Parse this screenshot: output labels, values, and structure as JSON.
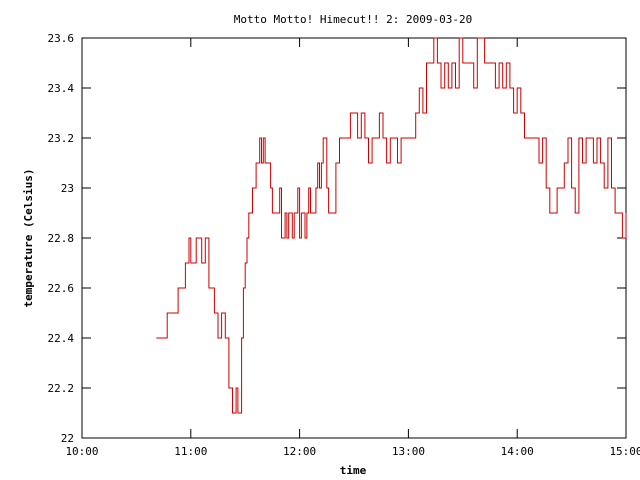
{
  "chart_data": {
    "type": "line",
    "title": "Motto Motto! Himecut!! 2: 2009-03-20",
    "xlabel": "time",
    "ylabel": "temperature (Celsius)",
    "xlim": [
      "10:00",
      "15:00"
    ],
    "ylim": [
      22,
      23.6
    ],
    "x_ticks": [
      "10:00",
      "11:00",
      "12:00",
      "13:00",
      "14:00",
      "15:00"
    ],
    "y_ticks": [
      "22",
      "22.2",
      "22.4",
      "22.6",
      "22.8",
      "23",
      "23.2",
      "23.4",
      "23.6"
    ],
    "grid": false,
    "legend": "none",
    "series_color": "#cc0000",
    "series": [
      {
        "x": [
          "10:41",
          "10:46",
          "10:47",
          "10:52",
          "10:53",
          "10:56",
          "10:57",
          "10:59",
          "11:00",
          "11:02",
          "11:03",
          "11:05",
          "11:06",
          "11:08",
          "11:09",
          "11:10",
          "11:12",
          "11:13",
          "11:15",
          "11:16",
          "11:17",
          "11:19",
          "11:20",
          "11:21",
          "11:22",
          "11:23",
          "11:24",
          "11:25",
          "11:26",
          "11:27",
          "11:28",
          "11:29",
          "11:30",
          "11:31",
          "11:32",
          "11:33",
          "11:34",
          "11:35",
          "11:36",
          "11:37",
          "11:38",
          "11:39",
          "11:40",
          "11:41",
          "11:42",
          "11:43",
          "11:44",
          "11:45",
          "11:46",
          "11:48",
          "11:49",
          "11:50",
          "11:52",
          "11:53",
          "11:54",
          "11:56",
          "11:57",
          "11:59",
          "12:00",
          "12:01",
          "12:02",
          "12:03",
          "12:04",
          "12:05",
          "12:06",
          "12:07",
          "12:08",
          "12:09",
          "12:10",
          "12:11",
          "12:12",
          "12:13",
          "12:15",
          "12:16",
          "12:18",
          "12:20",
          "12:22",
          "12:24",
          "12:26",
          "12:28",
          "12:30",
          "12:32",
          "12:34",
          "12:36",
          "12:38",
          "12:40",
          "12:42",
          "12:44",
          "12:46",
          "12:48",
          "12:50",
          "12:52",
          "12:54",
          "12:56",
          "12:58",
          "13:00",
          "13:02",
          "13:04",
          "13:06",
          "13:08",
          "13:10",
          "13:12",
          "13:14",
          "13:16",
          "13:18",
          "13:20",
          "13:22",
          "13:24",
          "13:26",
          "13:28",
          "13:30",
          "13:32",
          "13:34",
          "13:36",
          "13:38",
          "13:40",
          "13:42",
          "13:44",
          "13:46",
          "13:48",
          "13:50",
          "13:52",
          "13:54",
          "13:56",
          "13:58",
          "14:00",
          "14:02",
          "14:04",
          "14:06",
          "14:08",
          "14:10",
          "14:12",
          "14:14",
          "14:16",
          "14:18",
          "14:20",
          "14:22",
          "14:24",
          "14:26",
          "14:28",
          "14:30",
          "14:32",
          "14:34",
          "14:36",
          "14:38",
          "14:40",
          "14:42",
          "14:44",
          "14:46",
          "14:48",
          "14:50",
          "14:52",
          "14:54",
          "14:56",
          "14:58",
          "15:00"
        ],
        "values": [
          22.4,
          22.4,
          22.5,
          22.5,
          22.6,
          22.6,
          22.7,
          22.8,
          22.7,
          22.7,
          22.8,
          22.8,
          22.7,
          22.8,
          22.8,
          22.6,
          22.6,
          22.5,
          22.4,
          22.4,
          22.5,
          22.4,
          22.4,
          22.2,
          22.2,
          22.1,
          22.1,
          22.2,
          22.1,
          22.1,
          22.4,
          22.6,
          22.7,
          22.8,
          22.9,
          22.9,
          23.0,
          23.0,
          23.1,
          23.1,
          23.2,
          23.1,
          23.2,
          23.1,
          23.1,
          23.1,
          23.0,
          22.9,
          22.9,
          22.9,
          23.0,
          22.8,
          22.9,
          22.8,
          22.9,
          22.8,
          22.9,
          23.0,
          22.8,
          22.9,
          22.9,
          22.8,
          22.9,
          23.0,
          22.9,
          22.9,
          22.9,
          23.0,
          23.1,
          23.0,
          23.1,
          23.2,
          23.0,
          22.9,
          22.9,
          23.1,
          23.2,
          23.2,
          23.2,
          23.3,
          23.3,
          23.2,
          23.3,
          23.2,
          23.1,
          23.2,
          23.2,
          23.3,
          23.2,
          23.1,
          23.2,
          23.2,
          23.1,
          23.2,
          23.2,
          23.2,
          23.2,
          23.3,
          23.4,
          23.3,
          23.5,
          23.5,
          23.6,
          23.5,
          23.4,
          23.5,
          23.4,
          23.5,
          23.4,
          23.6,
          23.5,
          23.5,
          23.5,
          23.4,
          23.6,
          23.6,
          23.5,
          23.5,
          23.5,
          23.4,
          23.5,
          23.4,
          23.5,
          23.4,
          23.3,
          23.4,
          23.3,
          23.2,
          23.2,
          23.2,
          23.2,
          23.1,
          23.2,
          23.0,
          22.9,
          22.9,
          23.0,
          23.0,
          23.1,
          23.2,
          23.0,
          22.9,
          23.2,
          23.1,
          23.2,
          23.2,
          23.1,
          23.2,
          23.1,
          23.0,
          23.2,
          23.0,
          22.9,
          22.9,
          22.8,
          22.9
        ]
      }
    ]
  }
}
